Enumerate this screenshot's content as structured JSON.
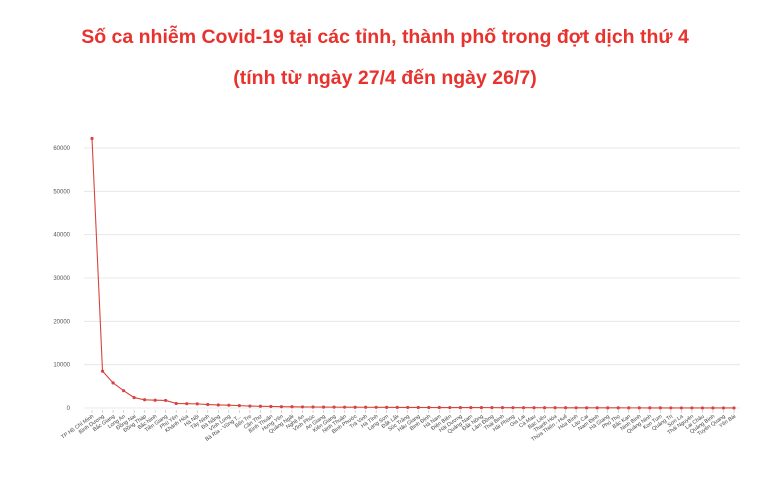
{
  "title": "Số ca nhiễm Covid-19 tại các tỉnh, thành phố trong đợt dịch thứ 4",
  "subtitle": "(tính từ ngày 27/4 đến ngày 26/7)",
  "colors": {
    "title": "#e8322d",
    "line": "#d6453f",
    "grid": "#e3e3e3"
  },
  "chart_data": {
    "type": "line",
    "grid": true,
    "ylim": [
      0,
      60000
    ],
    "yticks": [
      0,
      10000,
      20000,
      30000,
      40000,
      50000,
      60000
    ],
    "categories": [
      "TP Hồ Chí Minh",
      "Bình Dương",
      "Bắc Giang",
      "Long An",
      "Đồng Nai",
      "Đồng Tháp",
      "Bắc Ninh",
      "Tiền Giang",
      "Phú Yên",
      "Khánh Hòa",
      "Hà Nội",
      "Tây Ninh",
      "Đà Nẵng",
      "Vĩnh Long",
      "Bà Rịa - Vũng T...",
      "Bến Tre",
      "Cần Thơ",
      "Bình Thuận",
      "Hưng Yên",
      "Quảng Ngãi",
      "Nghệ An",
      "Vĩnh Phúc",
      "An Giang",
      "Kiên Giang",
      "Ninh Thuận",
      "Bình Phước",
      "Trà Vinh",
      "Hà Tĩnh",
      "Lạng Sơn",
      "Đắk Lắk",
      "Sóc Trăng",
      "Hậu Giang",
      "Bình Định",
      "Hà Nam",
      "Điện Biên",
      "Hải Dương",
      "Quảng Nam",
      "Đắk Nông",
      "Lâm Đồng",
      "Thái Bình",
      "Hải Phòng",
      "Gia Lai",
      "Cà Mau",
      "Bạc Liêu",
      "Thanh Hóa",
      "Thừa Thiên - Huế",
      "Hòa Bình",
      "Lào Cai",
      "Nam Định",
      "Hà Giang",
      "Phú Thọ",
      "Bắc Kạn",
      "Ninh Bình",
      "Quảng Ninh",
      "Kon Tum",
      "Quảng Trị",
      "Sơn La",
      "Thái Nguyên",
      "Lai Châu",
      "Quảng Bình",
      "Tuyên Quang",
      "Yên Bái"
    ],
    "values": [
      62200,
      8500,
      5800,
      4000,
      2400,
      1900,
      1800,
      1750,
      1050,
      1000,
      950,
      800,
      700,
      650,
      550,
      450,
      400,
      350,
      300,
      280,
      250,
      230,
      210,
      200,
      190,
      180,
      170,
      160,
      150,
      140,
      130,
      120,
      115,
      110,
      105,
      100,
      95,
      90,
      85,
      80,
      75,
      70,
      65,
      60,
      55,
      50,
      45,
      40,
      38,
      35,
      32,
      30,
      28,
      25,
      22,
      20,
      18,
      16,
      14,
      12,
      10,
      8
    ]
  }
}
